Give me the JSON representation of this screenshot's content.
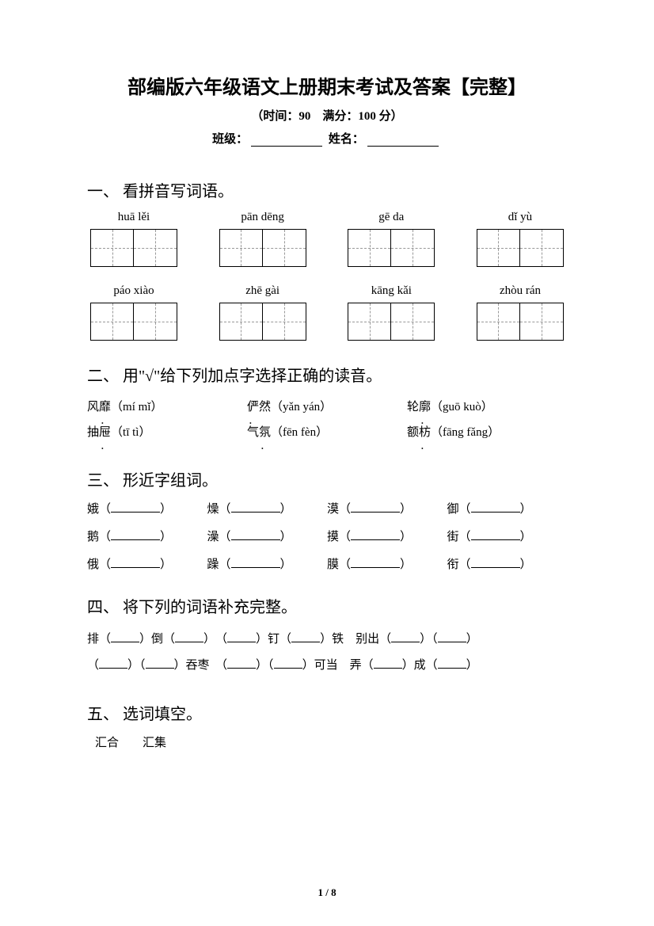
{
  "title": "部编版六年级语文上册期末考试及答案【完整】",
  "subtitle": "（时间：90　满分：100 分）",
  "meta": {
    "class_label": "班级：",
    "name_label": "姓名："
  },
  "sections": {
    "s1": {
      "heading": "一、 看拼音写词语。",
      "row1": [
        "huā lěi",
        "pān dēng",
        "gē da",
        "dǐ yù"
      ],
      "row2": [
        "páo xiào",
        "zhē gài",
        "kāng kǎi",
        "zhòu rán"
      ]
    },
    "s2": {
      "heading": "二、 用\"√\"给下列加点字选择正确的读音。",
      "r1c1a": "风",
      "r1c1b": "靡",
      "r1c1p": "（mí mǐ）",
      "r1c2a": "俨",
      "r1c2b": "然",
      "r1c2p": "（yǎn yán）",
      "r1c3a": "轮",
      "r1c3b": "廓",
      "r1c3p": "（guō kuò）",
      "r2c1a": "抽",
      "r2c1b": "屉",
      "r2c1p": "（tī tì）",
      "r2c2a": "气",
      "r2c2b": "氛",
      "r2c2p": "（fēn fèn）",
      "r2c3a": "额",
      "r2c3b": "枋",
      "r2c3p": "（fāng fǎng）"
    },
    "s3": {
      "heading": "三、 形近字组词。",
      "rows": [
        [
          "娥",
          "燥",
          "漠",
          "御"
        ],
        [
          "鹅",
          "澡",
          "摸",
          "街"
        ],
        [
          "俄",
          "躁",
          "膜",
          "衔"
        ]
      ]
    },
    "s4": {
      "heading": "四、 将下列的词语补充完整。",
      "l1a": "排（",
      "l1b": "）倒（",
      "l1c": "）　（",
      "l1d": "）钉（",
      "l1e": "）铁　别出（",
      "l1f": "）（",
      "l1g": "）",
      "l2a": "（",
      "l2b": "）（",
      "l2c": "）吞枣　（",
      "l2d": "）（",
      "l2e": "）可当　弄（",
      "l2f": "）成（",
      "l2g": "）"
    },
    "s5": {
      "heading": "五、 选词填空。",
      "words": "汇合　　汇集"
    }
  },
  "footer": {
    "page": "1",
    "sep": " / ",
    "total": "8"
  }
}
